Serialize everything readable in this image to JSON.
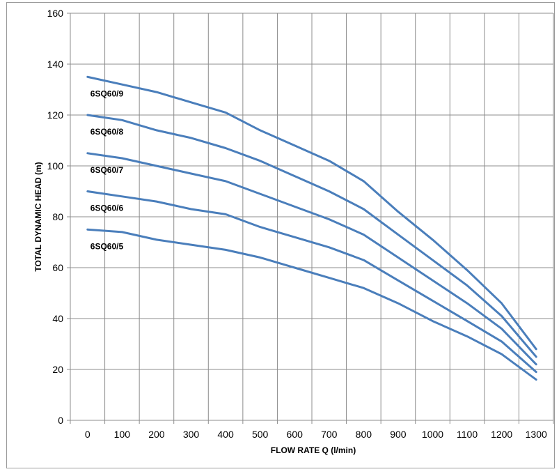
{
  "chart_data": {
    "type": "line",
    "title": "",
    "xlabel": "FLOW RATE Q (l/min)",
    "ylabel": "TOTAL DYNAMIC HEAD (m)",
    "xlim": [
      0,
      1300
    ],
    "ylim": [
      0,
      160
    ],
    "x_ticks": [
      0,
      100,
      200,
      300,
      400,
      500,
      600,
      700,
      800,
      900,
      1000,
      1100,
      1200,
      1300
    ],
    "y_ticks": [
      0,
      20,
      40,
      60,
      80,
      100,
      120,
      140,
      160
    ],
    "x_tick_labels": [
      "0",
      "100",
      "200",
      "300",
      "400",
      "500",
      "600",
      "700",
      "800",
      "900",
      "1000",
      "1100",
      "1200",
      "1300"
    ],
    "y_tick_labels": [
      "0",
      "20",
      "40",
      "60",
      "80",
      "100",
      "120",
      "140",
      "160"
    ],
    "grid": true,
    "legend": "none",
    "line_color": "#4a7ebb",
    "x": [
      0,
      100,
      200,
      300,
      400,
      500,
      600,
      700,
      800,
      900,
      1000,
      1100,
      1200,
      1300
    ],
    "series": [
      {
        "name": "6SQ60/9",
        "values": [
          135,
          132,
          129,
          125,
          121,
          114,
          108,
          102,
          94,
          82,
          71,
          59,
          46,
          28
        ]
      },
      {
        "name": "6SQ60/8",
        "values": [
          120,
          118,
          114,
          111,
          107,
          102,
          96,
          90,
          83,
          73,
          63,
          53,
          41,
          25
        ]
      },
      {
        "name": "6SQ60/7",
        "values": [
          105,
          103,
          100,
          97,
          94,
          89,
          84,
          79,
          73,
          64,
          55,
          46,
          36,
          22
        ]
      },
      {
        "name": "6SQ60/6",
        "values": [
          90,
          88,
          86,
          83,
          81,
          76,
          72,
          68,
          63,
          55,
          47,
          39,
          31,
          19
        ]
      },
      {
        "name": "6SQ60/5",
        "values": [
          75,
          74,
          71,
          69,
          67,
          64,
          60,
          56,
          52,
          46,
          39,
          33,
          26,
          16
        ]
      }
    ]
  }
}
